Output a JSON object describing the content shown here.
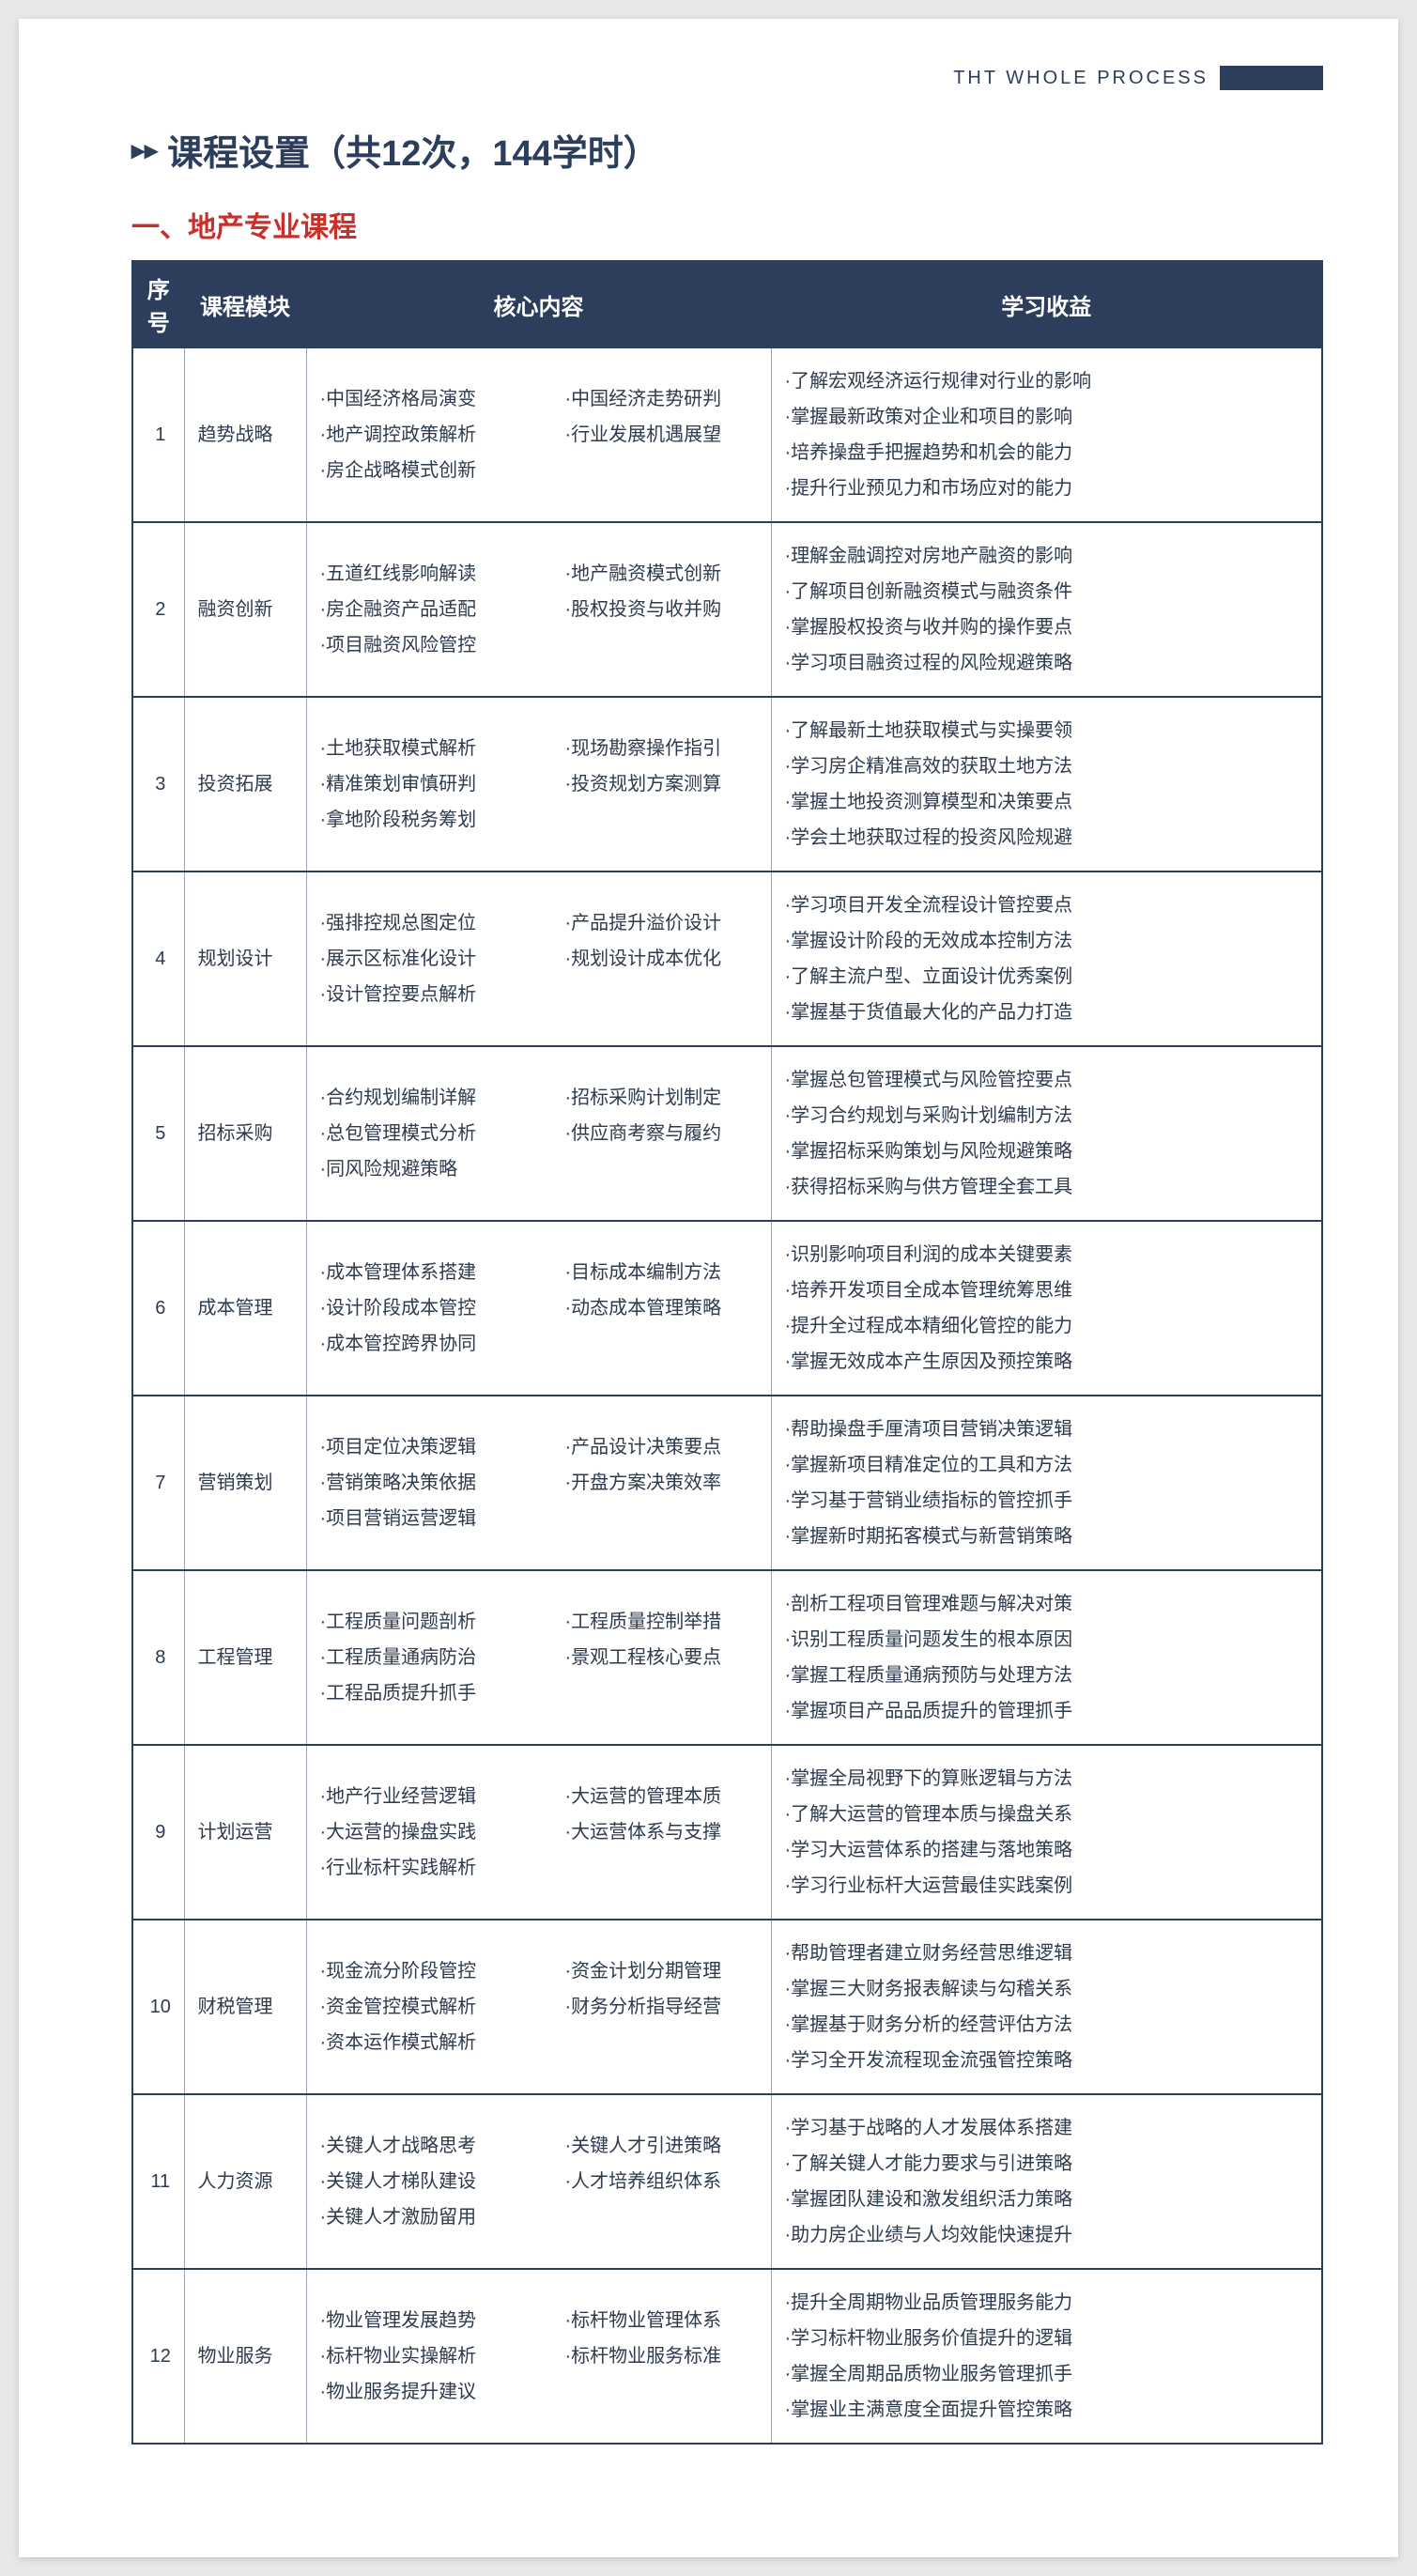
{
  "header": {
    "label": "THT  WHOLE  PROCESS"
  },
  "title": {
    "icon": "▸▸",
    "text": "课程设置（共12次，144学时）"
  },
  "section": {
    "heading": "一、地产专业课程"
  },
  "columns": {
    "idx": "序号",
    "module": "课程模块",
    "core": "核心内容",
    "benefit": "学习收益"
  },
  "colors": {
    "brand": "#2c3e5c",
    "accent_red": "#c9302c",
    "body_text": "#2e3a4d",
    "page_bg": "#ffffff",
    "outer_bg": "#e8e8e8",
    "cell_border": "#9aa3b4"
  },
  "typography": {
    "title_fontsize": 38,
    "section_fontsize": 30,
    "th_fontsize": 24,
    "td_fontsize": 20,
    "line_height": 1.9
  },
  "rows": [
    {
      "idx": "1",
      "module": "趋势战略",
      "core_left": [
        "·中国经济格局演变",
        "·地产调控政策解析",
        "·房企战略模式创新"
      ],
      "core_right": [
        "·中国经济走势研判",
        "·行业发展机遇展望"
      ],
      "benefits": [
        "·了解宏观经济运行规律对行业的影响",
        "·掌握最新政策对企业和项目的影响",
        "·培养操盘手把握趋势和机会的能力",
        "·提升行业预见力和市场应对的能力"
      ]
    },
    {
      "idx": "2",
      "module": "融资创新",
      "core_left": [
        "·五道红线影响解读",
        "·房企融资产品适配",
        "·项目融资风险管控"
      ],
      "core_right": [
        "·地产融资模式创新",
        "·股权投资与收并购"
      ],
      "benefits": [
        "·理解金融调控对房地产融资的影响",
        "·了解项目创新融资模式与融资条件",
        "·掌握股权投资与收并购的操作要点",
        "·学习项目融资过程的风险规避策略"
      ]
    },
    {
      "idx": "3",
      "module": "投资拓展",
      "core_left": [
        "·土地获取模式解析",
        "·精准策划审慎研判",
        "·拿地阶段税务筹划"
      ],
      "core_right": [
        "·现场勘察操作指引",
        "·投资规划方案测算"
      ],
      "benefits": [
        "·了解最新土地获取模式与实操要领",
        "·学习房企精准高效的获取土地方法",
        "·掌握土地投资测算模型和决策要点",
        "·学会土地获取过程的投资风险规避"
      ]
    },
    {
      "idx": "4",
      "module": "规划设计",
      "core_left": [
        "·强排控规总图定位",
        "·展示区标准化设计",
        "·设计管控要点解析"
      ],
      "core_right": [
        "·产品提升溢价设计",
        "·规划设计成本优化"
      ],
      "benefits": [
        "·学习项目开发全流程设计管控要点",
        "·掌握设计阶段的无效成本控制方法",
        "·了解主流户型、立面设计优秀案例",
        "·掌握基于货值最大化的产品力打造"
      ]
    },
    {
      "idx": "5",
      "module": "招标采购",
      "core_left": [
        "·合约规划编制详解",
        "·总包管理模式分析",
        "·同风险规避策略"
      ],
      "core_right": [
        "·招标采购计划制定",
        "·供应商考察与履约"
      ],
      "benefits": [
        "·掌握总包管理模式与风险管控要点",
        "·学习合约规划与采购计划编制方法",
        "·掌握招标采购策划与风险规避策略",
        "·获得招标采购与供方管理全套工具"
      ]
    },
    {
      "idx": "6",
      "module": "成本管理",
      "core_left": [
        "·成本管理体系搭建",
        "·设计阶段成本管控",
        "·成本管控跨界协同"
      ],
      "core_right": [
        "·目标成本编制方法",
        "·动态成本管理策略"
      ],
      "benefits": [
        "·识别影响项目利润的成本关键要素",
        "·培养开发项目全成本管理统筹思维",
        "·提升全过程成本精细化管控的能力",
        "·掌握无效成本产生原因及预控策略"
      ]
    },
    {
      "idx": "7",
      "module": "营销策划",
      "core_left": [
        "·项目定位决策逻辑",
        "·营销策略决策依据",
        "·项目营销运营逻辑"
      ],
      "core_right": [
        "·产品设计决策要点",
        "·开盘方案决策效率"
      ],
      "benefits": [
        "·帮助操盘手厘清项目营销决策逻辑",
        "·掌握新项目精准定位的工具和方法",
        "·学习基于营销业绩指标的管控抓手",
        "·掌握新时期拓客模式与新营销策略"
      ]
    },
    {
      "idx": "8",
      "module": "工程管理",
      "core_left": [
        "·工程质量问题剖析",
        "·工程质量通病防治",
        "·工程品质提升抓手"
      ],
      "core_right": [
        "·工程质量控制举措",
        "·景观工程核心要点"
      ],
      "benefits": [
        "·剖析工程项目管理难题与解决对策",
        "·识别工程质量问题发生的根本原因",
        "·掌握工程质量通病预防与处理方法",
        "·掌握项目产品品质提升的管理抓手"
      ]
    },
    {
      "idx": "9",
      "module": "计划运营",
      "core_left": [
        "·地产行业经营逻辑",
        "·大运营的操盘实践",
        "·行业标杆实践解析"
      ],
      "core_right": [
        "·大运营的管理本质",
        "·大运营体系与支撑"
      ],
      "benefits": [
        "·掌握全局视野下的算账逻辑与方法",
        "·了解大运营的管理本质与操盘关系",
        "·学习大运营体系的搭建与落地策略",
        "·学习行业标杆大运营最佳实践案例"
      ]
    },
    {
      "idx": "10",
      "module": "财税管理",
      "core_left": [
        "·现金流分阶段管控",
        "·资金管控模式解析",
        "·资本运作模式解析"
      ],
      "core_right": [
        "·资金计划分期管理",
        "·财务分析指导经营"
      ],
      "benefits": [
        "·帮助管理者建立财务经营思维逻辑",
        "·掌握三大财务报表解读与勾稽关系",
        "·掌握基于财务分析的经营评估方法",
        "·学习全开发流程现金流强管控策略"
      ]
    },
    {
      "idx": "11",
      "module": "人力资源",
      "core_left": [
        "·关键人才战略思考",
        "·关键人才梯队建设",
        "·关键人才激励留用"
      ],
      "core_right": [
        "·关键人才引进策略",
        "·人才培养组织体系"
      ],
      "benefits": [
        "·学习基于战略的人才发展体系搭建",
        "·了解关键人才能力要求与引进策略",
        "·掌握团队建设和激发组织活力策略",
        "·助力房企业绩与人均效能快速提升"
      ]
    },
    {
      "idx": "12",
      "module": "物业服务",
      "core_left": [
        "·物业管理发展趋势",
        "·标杆物业实操解析",
        "·物业服务提升建议"
      ],
      "core_right": [
        "·标杆物业管理体系",
        "·标杆物业服务标准"
      ],
      "benefits": [
        "·提升全周期物业品质管理服务能力",
        "·学习标杆物业服务价值提升的逻辑",
        "·掌握全周期品质物业服务管理抓手",
        "·掌握业主满意度全面提升管控策略"
      ]
    }
  ]
}
